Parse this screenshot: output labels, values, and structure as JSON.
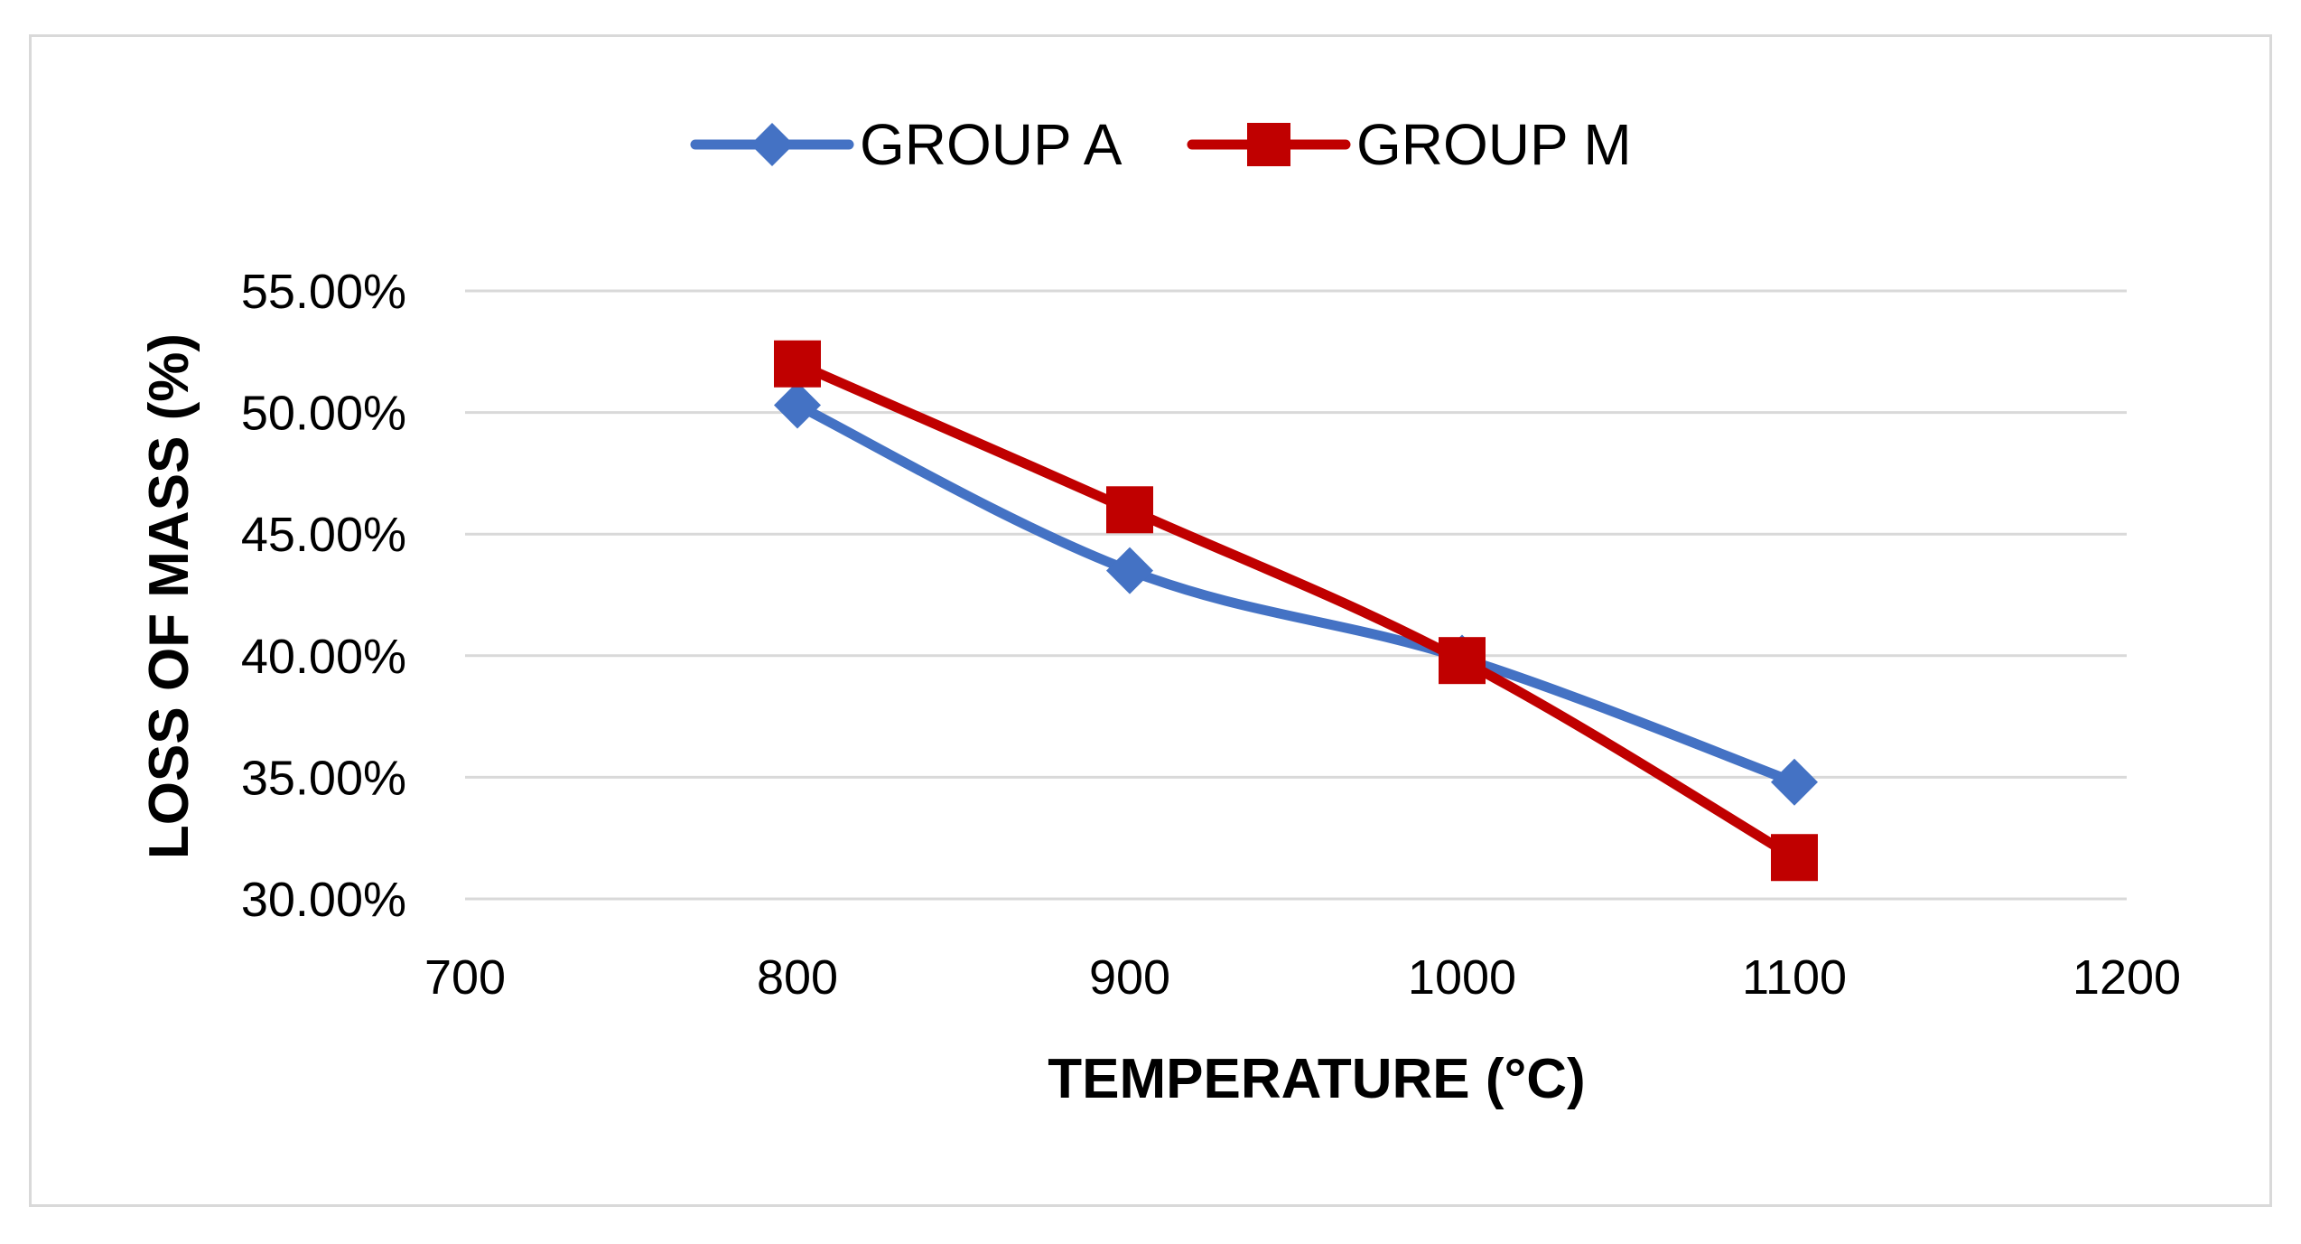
{
  "chart_data": {
    "type": "line",
    "title": "",
    "xlabel": "TEMPERATURE (°C)",
    "ylabel": "LOSS OF MASS (%)",
    "x": [
      800,
      900,
      1000,
      1100
    ],
    "xlim": [
      700,
      1200
    ],
    "x_ticks": [
      700,
      800,
      900,
      1000,
      1100,
      1200
    ],
    "x_tick_labels": [
      "700",
      "800",
      "900",
      "1000",
      "1100",
      "1200"
    ],
    "ylim": [
      0.3,
      0.55
    ],
    "y_ticks": [
      0.3,
      0.35,
      0.4,
      0.45,
      0.5,
      0.55
    ],
    "y_tick_labels": [
      "30.00%",
      "35.00%",
      "40.00%",
      "45.00%",
      "50.00%",
      "55.00%"
    ],
    "grid": "horizontal",
    "legend_position": "top",
    "series": [
      {
        "name": "GROUP A",
        "marker": "diamond",
        "color": "#4472C4",
        "values": [
          0.503,
          0.435,
          0.399,
          0.348
        ]
      },
      {
        "name": "GROUP M",
        "marker": "square",
        "color": "#C00000",
        "values": [
          0.52,
          0.46,
          0.398,
          0.317
        ]
      }
    ]
  }
}
